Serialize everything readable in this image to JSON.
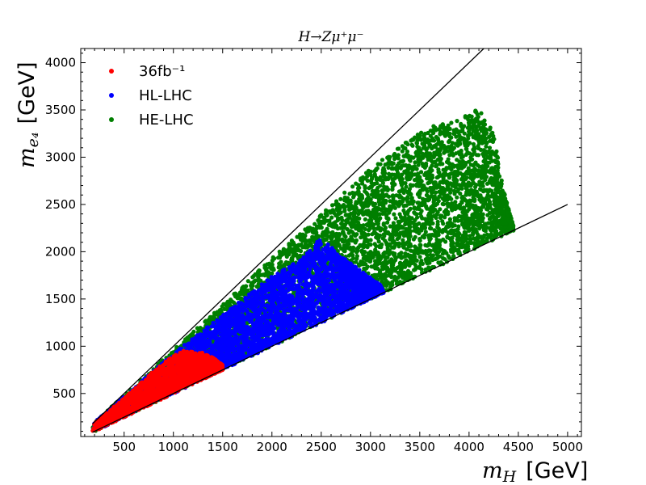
{
  "chart_data": {
    "type": "scatter",
    "title": "H→Zμ⁺μ⁻",
    "xlabel": {
      "symbol": "m",
      "subscript": "H",
      "unit": "[GeV]"
    },
    "ylabel": {
      "symbol": "m",
      "subscript": "e₄",
      "unit": "[GeV]"
    },
    "xlim": [
      60,
      5140
    ],
    "ylim": [
      45,
      4150
    ],
    "xticks": [
      500,
      1000,
      1500,
      2000,
      2500,
      3000,
      3500,
      4000,
      4500,
      5000
    ],
    "yticks": [
      500,
      1000,
      1500,
      2000,
      2500,
      3000,
      3500,
      4000
    ],
    "grid": false,
    "legend_position": "top-left",
    "series": [
      {
        "name": "HE-LHC",
        "color": "#007f00",
        "region": {
          "x_min": 180,
          "x_max": 4450,
          "lower_slope": 0.5,
          "upper_slope": 0.97,
          "max_y": [
            [
              180,
              180
            ],
            [
              500,
              480
            ],
            [
              1000,
              960
            ],
            [
              1500,
              1440
            ],
            [
              2000,
              1930
            ],
            [
              2500,
              2400
            ],
            [
              3000,
              2880
            ],
            [
              3300,
              3120
            ],
            [
              3600,
              3320
            ],
            [
              3900,
              3400
            ],
            [
              4100,
              3520
            ],
            [
              4250,
              3250
            ],
            [
              4350,
              2650
            ],
            [
              4450,
              2270
            ]
          ]
        },
        "n_points": 5500
      },
      {
        "name": "HL-LHC",
        "color": "#0000ff",
        "region": {
          "x_min": 180,
          "x_max": 3150,
          "lower_slope": 0.5,
          "upper_slope": 0.97,
          "max_y": [
            [
              180,
              180
            ],
            [
              500,
              470
            ],
            [
              1000,
              920
            ],
            [
              1500,
              1330
            ],
            [
              2000,
              1740
            ],
            [
              2300,
              1920
            ],
            [
              2500,
              2150
            ],
            [
              2700,
              1950
            ],
            [
              2900,
              1800
            ],
            [
              3100,
              1650
            ],
            [
              3150,
              1530
            ]
          ]
        },
        "n_points": 4000
      },
      {
        "name": "36fb⁻¹",
        "color": "#ff0000",
        "region": {
          "x_min": 180,
          "x_max": 1500,
          "lower_slope": 0.5,
          "upper_slope": 0.95,
          "max_y": [
            [
              180,
              175
            ],
            [
              500,
              450
            ],
            [
              800,
              740
            ],
            [
              1000,
              900
            ],
            [
              1100,
              950
            ],
            [
              1300,
              930
            ],
            [
              1400,
              880
            ],
            [
              1500,
              800
            ]
          ]
        },
        "n_points": 1800
      }
    ],
    "lines": [
      {
        "name": "upper-bound",
        "x": [
          180,
          4150
        ],
        "y": [
          180,
          4150
        ],
        "color": "#000000"
      },
      {
        "name": "lower-bound",
        "x": [
          180,
          5000
        ],
        "y": [
          90,
          2500
        ],
        "color": "#000000"
      }
    ]
  }
}
